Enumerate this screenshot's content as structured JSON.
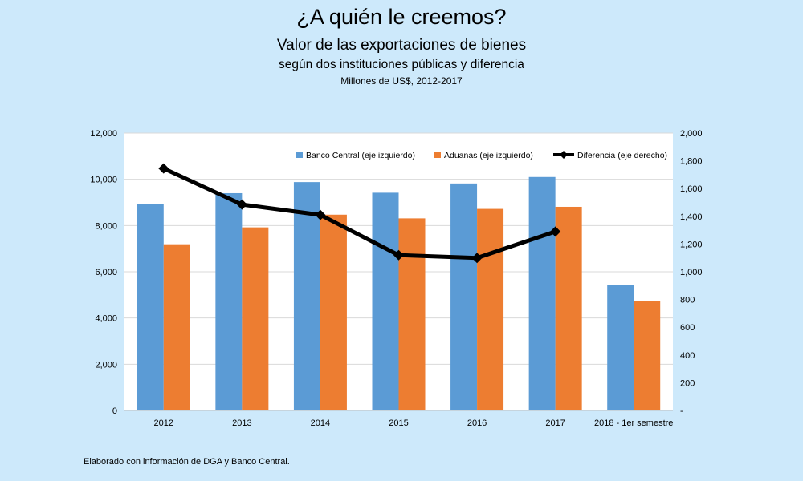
{
  "chart_data": {
    "type": "bar",
    "title": "¿A quién le creemos?",
    "subtitle": "Valor de las exportaciones de bienes",
    "subtitle2": "según dos instituciones públicas y diferencia",
    "subtitle3": "Millones de US$, 2012-2017",
    "categories": [
      "2012",
      "2013",
      "2014",
      "2015",
      "2016",
      "2017",
      "2018 - 1er semestre"
    ],
    "series": [
      {
        "name": "Banco Central (eje izquierdo)",
        "type": "bar",
        "axis": "left",
        "color": "#5b9bd5",
        "values": [
          8930,
          9400,
          9880,
          9420,
          9820,
          10100,
          5420
        ]
      },
      {
        "name": "Aduanas (eje izquierdo)",
        "type": "bar",
        "axis": "left",
        "color": "#ed7d31",
        "values": [
          7190,
          7920,
          8470,
          8310,
          8720,
          8810,
          4730
        ]
      },
      {
        "name": "Diferencia (eje derecho)",
        "type": "line",
        "axis": "right",
        "color": "#000000",
        "values": [
          1745,
          1485,
          1410,
          1120,
          1100,
          1290,
          null
        ]
      }
    ],
    "y_left": {
      "min": 0,
      "max": 12000,
      "ticks": [
        "0",
        "2,000",
        "4,000",
        "6,000",
        "8,000",
        "10,000",
        "12,000"
      ]
    },
    "y_right": {
      "min": 0,
      "max": 2000,
      "ticks": [
        "-",
        "200",
        "400",
        "600",
        "800",
        "1,000",
        "1,200",
        "1,400",
        "1,600",
        "1,800",
        "2,000"
      ]
    },
    "grid": true,
    "legend_position": "top-right"
  },
  "footer": "Elaborado con información de DGA y Banco Central."
}
